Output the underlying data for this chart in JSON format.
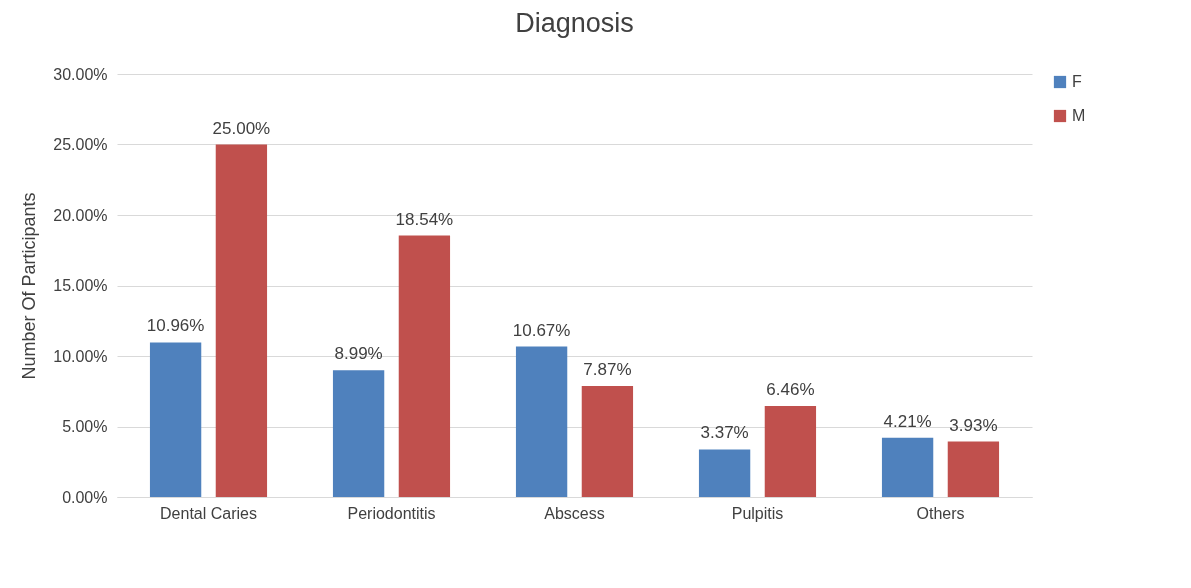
{
  "chart_data": {
    "type": "bar",
    "title": "Diagnosis",
    "ylabel": "Number Of Participants",
    "categories": [
      "Dental Caries",
      "Periodontitis",
      "Abscess",
      "Pulpitis",
      "Others"
    ],
    "series": [
      {
        "name": "F",
        "color": "#4f81bd",
        "values": [
          10.96,
          8.99,
          10.67,
          3.37,
          4.21
        ],
        "value_labels": [
          "10.96%",
          "8.99%",
          "10.67%",
          "3.37%",
          "4.21%"
        ]
      },
      {
        "name": "M",
        "color": "#c0504d",
        "values": [
          25.0,
          18.54,
          7.87,
          6.46,
          3.93
        ],
        "value_labels": [
          "25.00%",
          "18.54%",
          "7.87%",
          "6.46%",
          "3.93%"
        ]
      }
    ],
    "ylim": [
      0,
      30
    ],
    "yticks": [
      {
        "value": 0,
        "label": "0.00%"
      },
      {
        "value": 5,
        "label": "5.00%"
      },
      {
        "value": 10,
        "label": "10.00%"
      },
      {
        "value": 15,
        "label": "15.00%"
      },
      {
        "value": 20,
        "label": "20.00%"
      },
      {
        "value": 25,
        "label": "25.00%"
      },
      {
        "value": 30,
        "label": "30.00%"
      }
    ],
    "grid": "y",
    "legend": "right"
  }
}
